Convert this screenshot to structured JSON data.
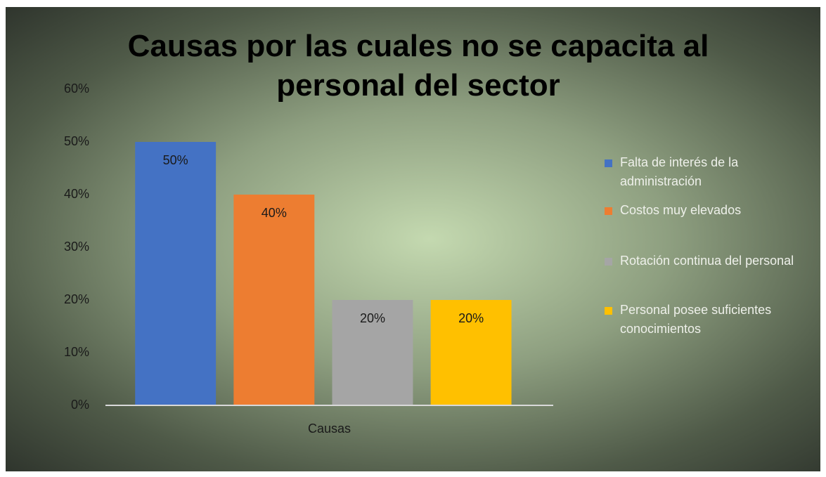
{
  "chart_data": {
    "type": "bar",
    "title": "Causas por las cuales no se capacita al personal del sector",
    "categories": [
      "Causas"
    ],
    "series": [
      {
        "name": "Falta de interés de la administración",
        "color": "#4472c4",
        "values": [
          50
        ],
        "value_labels": [
          "50%"
        ]
      },
      {
        "name": "Costos muy elevados",
        "color": "#ed7d31",
        "values": [
          40
        ],
        "value_labels": [
          "40%"
        ]
      },
      {
        "name": "Rotación continua del personal",
        "color": "#a5a5a5",
        "values": [
          20
        ],
        "value_labels": [
          "20%"
        ]
      },
      {
        "name": "Personal posee suficientes conocimientos",
        "color": "#ffc000",
        "values": [
          20
        ],
        "value_labels": [
          "20%"
        ]
      }
    ],
    "ylim": [
      0,
      60
    ],
    "yticks": [
      {
        "value": 0,
        "label": "0%"
      },
      {
        "value": 10,
        "label": "10%"
      },
      {
        "value": 20,
        "label": "20%"
      },
      {
        "value": 30,
        "label": "30%"
      },
      {
        "value": 40,
        "label": "40%"
      },
      {
        "value": 50,
        "label": "50%"
      },
      {
        "value": 60,
        "label": "60%"
      }
    ],
    "grid": false,
    "legend": "right"
  }
}
